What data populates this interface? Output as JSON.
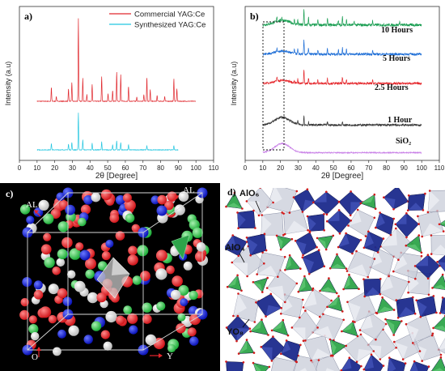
{
  "chart_data": [
    {
      "type": "line",
      "panel_label": "a)",
      "xlabel": "2θ [Degree]",
      "ylabel": "Intensity (a.u)",
      "xlim": [
        0,
        110
      ],
      "x_ticks": [
        "0",
        "10",
        "20",
        "30",
        "40",
        "50",
        "60",
        "70",
        "80",
        "90",
        "100",
        "110"
      ],
      "legend_position": "top-right",
      "series": [
        {
          "name": "Commercial YAG:Ce",
          "color": "#e0282e",
          "x_range": [
            10,
            100
          ],
          "baseline": 0.5,
          "peaks": [
            [
              18.1,
              0.17
            ],
            [
              20.9,
              0.06
            ],
            [
              27.8,
              0.15
            ],
            [
              29.7,
              0.23
            ],
            [
              33.4,
              1.0
            ],
            [
              35.9,
              0.28
            ],
            [
              38.2,
              0.08
            ],
            [
              41.2,
              0.2
            ],
            [
              46.6,
              0.3
            ],
            [
              50.2,
              0.09
            ],
            [
              52.8,
              0.13
            ],
            [
              55.1,
              0.35
            ],
            [
              57.4,
              0.32
            ],
            [
              61.8,
              0.18
            ],
            [
              66.5,
              0.05
            ],
            [
              70.5,
              0.08
            ],
            [
              72.2,
              0.29
            ],
            [
              74.1,
              0.14
            ],
            [
              78.0,
              0.07
            ],
            [
              82.3,
              0.06
            ],
            [
              87.5,
              0.27
            ],
            [
              89.2,
              0.15
            ]
          ]
        },
        {
          "name": "Synthesized YAG:Ce",
          "color": "#22c6e0",
          "x_range": [
            10,
            90
          ],
          "baseline": 0.06,
          "peaks": [
            [
              18.1,
              0.08
            ],
            [
              27.8,
              0.07
            ],
            [
              29.7,
              0.09
            ],
            [
              33.4,
              0.45
            ],
            [
              35.9,
              0.12
            ],
            [
              41.2,
              0.08
            ],
            [
              46.6,
              0.1
            ],
            [
              52.8,
              0.06
            ],
            [
              55.1,
              0.11
            ],
            [
              57.4,
              0.09
            ],
            [
              61.8,
              0.06
            ],
            [
              72.2,
              0.05
            ],
            [
              87.5,
              0.05
            ]
          ]
        }
      ]
    },
    {
      "type": "line",
      "panel_label": "b)",
      "xlabel": "2θ [Degree]",
      "ylabel": "Intensity (a.u)",
      "xlim": [
        0,
        110
      ],
      "x_ticks": [
        "0",
        "10",
        "20",
        "30",
        "40",
        "50",
        "60",
        "70",
        "80",
        "90",
        "100",
        "110"
      ],
      "highlight_region_2theta": [
        13,
        25
      ],
      "series": [
        {
          "name": "10 Hours",
          "color": "#1a9e52",
          "baseline": 0.88,
          "noise": 0.018,
          "hump": 0.03,
          "peaks": [
            [
              18,
              0.035
            ],
            [
              20.8,
              0.02
            ],
            [
              27.9,
              0.025
            ],
            [
              29.8,
              0.03
            ],
            [
              33.3,
              0.1
            ],
            [
              35.9,
              0.045
            ],
            [
              41.2,
              0.035
            ],
            [
              46.6,
              0.04
            ],
            [
              52.8,
              0.03
            ],
            [
              55.1,
              0.05
            ],
            [
              57.4,
              0.04
            ],
            [
              61.8,
              0.025
            ],
            [
              72.2,
              0.03
            ],
            [
              87.5,
              0.025
            ]
          ]
        },
        {
          "name": "5 Hours",
          "color": "#1e6ed6",
          "baseline": 0.69,
          "noise": 0.016,
          "hump": 0.02,
          "peaks": [
            [
              18,
              0.03
            ],
            [
              27.9,
              0.025
            ],
            [
              29.8,
              0.03
            ],
            [
              33.3,
              0.09
            ],
            [
              35.9,
              0.04
            ],
            [
              41.2,
              0.03
            ],
            [
              46.6,
              0.04
            ],
            [
              52.8,
              0.03
            ],
            [
              55.1,
              0.045
            ],
            [
              57.4,
              0.035
            ],
            [
              72.2,
              0.025
            ]
          ]
        },
        {
          "name": "2.5 Hours",
          "color": "#e5262b",
          "baseline": 0.5,
          "noise": 0.014,
          "hump": 0.02,
          "peaks": [
            [
              18,
              0.03
            ],
            [
              27.9,
              0.02
            ],
            [
              29.8,
              0.03
            ],
            [
              33.3,
              0.09
            ],
            [
              35.9,
              0.035
            ],
            [
              41.2,
              0.025
            ],
            [
              46.6,
              0.035
            ],
            [
              55.1,
              0.04
            ],
            [
              57.4,
              0.03
            ],
            [
              72.2,
              0.02
            ]
          ]
        },
        {
          "name": "1 Hour",
          "color": "#333333",
          "baseline": 0.23,
          "noise": 0.014,
          "hump": 0.05,
          "peaks": [
            [
              33.3,
              0.06
            ],
            [
              29.8,
              0.02
            ],
            [
              35.9,
              0.02
            ],
            [
              46.6,
              0.02
            ],
            [
              55.1,
              0.02
            ]
          ]
        },
        {
          "name": "SiO₂",
          "color": "#c77de6",
          "baseline": 0.05,
          "noise": 0.008,
          "hump": 0.06,
          "peaks": []
        }
      ]
    }
  ],
  "panel_c": {
    "label": "c)",
    "axis_labels": [
      "AL",
      "AL",
      "O",
      "Y"
    ]
  },
  "panel_d": {
    "label": "d)",
    "polyhedra_labels": [
      "AlO₆",
      "AlO₄",
      "YO₈"
    ],
    "colors": {
      "AlO6": "#1b2a8c",
      "AlO4": "#2ea44a",
      "YO8": "#c8ccd8"
    }
  }
}
